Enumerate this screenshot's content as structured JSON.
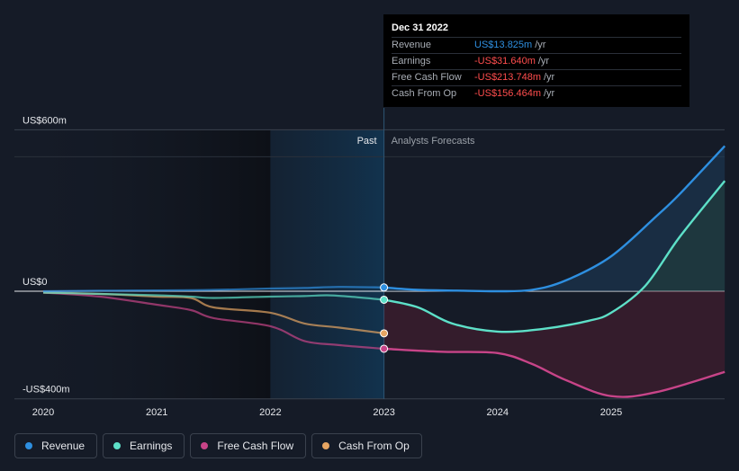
{
  "chart_data": {
    "type": "line",
    "x_labels": [
      "2020",
      "2021",
      "2022",
      "2023",
      "2024",
      "2025"
    ],
    "y_labels": [
      "US$600m",
      "US$0",
      "-US$400m"
    ],
    "ylim": [
      -400,
      600
    ],
    "period_labels": {
      "past": "Past",
      "forecast": "Analysts Forecasts"
    },
    "grid": false,
    "series": [
      {
        "name": "Revenue",
        "color": "#2e8fe0",
        "points": [
          [
            2020.0,
            0
          ],
          [
            2020.5,
            2
          ],
          [
            2021.0,
            3
          ],
          [
            2021.5,
            5
          ],
          [
            2022.0,
            10
          ],
          [
            2022.3,
            12
          ],
          [
            2022.6,
            16
          ],
          [
            2023.0,
            14
          ],
          [
            2023.3,
            5
          ],
          [
            2023.7,
            2
          ],
          [
            2024.0,
            0
          ],
          [
            2024.3,
            5
          ],
          [
            2024.6,
            40
          ],
          [
            2025.0,
            130
          ],
          [
            2025.4,
            280
          ],
          [
            2025.6,
            360
          ],
          [
            2026.0,
            540
          ]
        ]
      },
      {
        "name": "Earnings",
        "color": "#5de0c8",
        "points": [
          [
            2020.0,
            -5
          ],
          [
            2020.5,
            -10
          ],
          [
            2021.0,
            -15
          ],
          [
            2021.3,
            -20
          ],
          [
            2021.5,
            -25
          ],
          [
            2022.0,
            -20
          ],
          [
            2022.3,
            -18
          ],
          [
            2022.5,
            -15
          ],
          [
            2022.7,
            -20
          ],
          [
            2023.0,
            -31.64
          ],
          [
            2023.3,
            -60
          ],
          [
            2023.6,
            -120
          ],
          [
            2024.0,
            -150
          ],
          [
            2024.4,
            -140
          ],
          [
            2024.8,
            -110
          ],
          [
            2025.0,
            -80
          ],
          [
            2025.3,
            20
          ],
          [
            2025.6,
            200
          ],
          [
            2026.0,
            410
          ]
        ]
      },
      {
        "name": "Free Cash Flow",
        "color": "#c74488",
        "points": [
          [
            2020.0,
            -5
          ],
          [
            2020.5,
            -20
          ],
          [
            2021.0,
            -50
          ],
          [
            2021.3,
            -70
          ],
          [
            2021.5,
            -100
          ],
          [
            2022.0,
            -130
          ],
          [
            2022.3,
            -185
          ],
          [
            2022.6,
            -200
          ],
          [
            2023.0,
            -213.748
          ],
          [
            2023.5,
            -225
          ],
          [
            2024.0,
            -230
          ],
          [
            2024.3,
            -270
          ],
          [
            2024.6,
            -330
          ],
          [
            2025.0,
            -390
          ],
          [
            2025.4,
            -375
          ],
          [
            2026.0,
            -300
          ]
        ]
      },
      {
        "name": "Cash From Op",
        "color": "#e6a562",
        "points": [
          [
            2020.0,
            -5
          ],
          [
            2020.5,
            -10
          ],
          [
            2021.0,
            -20
          ],
          [
            2021.3,
            -25
          ],
          [
            2021.5,
            -60
          ],
          [
            2022.0,
            -80
          ],
          [
            2022.3,
            -120
          ],
          [
            2022.6,
            -135
          ],
          [
            2023.0,
            -156.464
          ]
        ]
      }
    ],
    "tooltip": {
      "date": "Dec 31 2022",
      "unit": "/yr",
      "rows": [
        {
          "label": "Revenue",
          "value": "US$13.825m",
          "color": "#2e8fe0"
        },
        {
          "label": "Earnings",
          "value": "-US$31.640m",
          "color": "#ff4d4d"
        },
        {
          "label": "Free Cash Flow",
          "value": "-US$213.748m",
          "color": "#ff4d4d"
        },
        {
          "label": "Cash From Op",
          "value": "-US$156.464m",
          "color": "#ff4d4d"
        }
      ]
    }
  },
  "legend": [
    {
      "label": "Revenue",
      "color": "#2e8fe0"
    },
    {
      "label": "Earnings",
      "color": "#5de0c8"
    },
    {
      "label": "Free Cash Flow",
      "color": "#c74488"
    },
    {
      "label": "Cash From Op",
      "color": "#e6a562"
    }
  ]
}
